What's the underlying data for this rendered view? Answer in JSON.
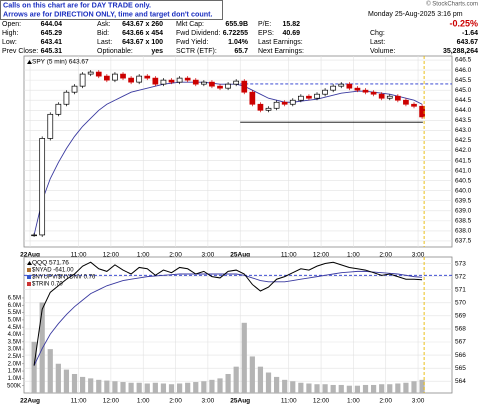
{
  "header": {
    "notes": [
      "Calls on this chart are for DAY TRADE only.",
      "Arrows are for DIRECTION ONLY, time and target don't count."
    ],
    "copyright": "© StockCharts.com",
    "date": "Monday  25-Aug-2025  3:16 pm",
    "change_pct": "-0.25%",
    "rows": [
      [
        [
          "Open:",
          "644.04"
        ],
        [
          "Ask:",
          "643.67 x 260"
        ],
        [
          "Mkt Cap:",
          "655.9B"
        ],
        [
          "P/E:",
          "15.82"
        ]
      ],
      [
        [
          "High:",
          "645.29"
        ],
        [
          "Bid:",
          "643.66 x 454"
        ],
        [
          "Fwd Dividend:",
          "6.72255"
        ],
        [
          "EPS:",
          "40.69"
        ]
      ],
      [
        [
          "Low:",
          "643.41"
        ],
        [
          "Last:",
          "643.67 x 100"
        ],
        [
          "Fwd Yield:",
          "1.04%"
        ],
        [
          "Last Earnings:"
        ]
      ],
      [
        [
          "Prev Close:",
          "645.31"
        ],
        [
          "Optionable:",
          "yes"
        ],
        [
          "SCTR (ETF):",
          "65.7"
        ],
        [
          "Next Earnings:"
        ]
      ]
    ],
    "right_rows": [
      [
        "Chg:",
        "-1.64"
      ],
      [
        "Last:",
        "643.67"
      ],
      [
        "Volume:",
        "35,288,264"
      ]
    ]
  },
  "chart_data": [
    {
      "type": "candlestick",
      "xlim": [
        -0.75,
        52.2
      ],
      "xticks": [
        {
          "value": 0,
          "label": "22Aug"
        },
        {
          "value": 6,
          "label": "11:00"
        },
        {
          "value": 10,
          "label": "12:00"
        },
        {
          "value": 14,
          "label": "1:00"
        },
        {
          "value": 18,
          "label": "2:00"
        },
        {
          "value": 22,
          "label": "3:00"
        },
        {
          "value": 26,
          "label": "25Aug"
        },
        {
          "value": 32,
          "label": "11:00"
        },
        {
          "value": 36,
          "label": "12:00"
        },
        {
          "value": 40,
          "label": "1:00"
        },
        {
          "value": 44,
          "label": "2:00"
        },
        {
          "value": 48,
          "label": "3:00"
        }
      ],
      "ylim": [
        637.2,
        646.7
      ],
      "yticks": [
        637.5,
        {
          "value": 638,
          "label": "638.0"
        },
        638.5,
        {
          "value": 639,
          "label": "639.0"
        },
        639.5,
        {
          "value": 640,
          "label": "640.0"
        },
        640.5,
        {
          "value": 641,
          "label": "641.0"
        },
        641.5,
        {
          "value": 642,
          "label": "642.0"
        },
        642.5,
        {
          "value": 643,
          "label": "643.0"
        },
        643.5,
        {
          "value": 644,
          "label": "644.0"
        },
        644.5,
        {
          "value": 645,
          "label": "645.0"
        },
        645.5,
        {
          "value": 646,
          "label": "646.0"
        },
        646.5
      ],
      "grid": true,
      "series": [
        {
          "name": "SPY (5 min) 643.67",
          "color": "#000000",
          "down_color": "#cc0000",
          "values": [
            637.8,
            642.6,
            643.8,
            644.3,
            644.9,
            645.2,
            645.8,
            645.9,
            645.7,
            645.5,
            645.8,
            645.6,
            645.4,
            645.7,
            645.6,
            645.3,
            645.5,
            645.4,
            645.6,
            645.5,
            645.3,
            645.4,
            645.2,
            645.1,
            645.3,
            645.45,
            644.9,
            644.3,
            644.0,
            644.1,
            644.4,
            644.3,
            644.5,
            644.7,
            644.6,
            644.8,
            645.0,
            645.2,
            645.3,
            645.1,
            645.0,
            644.9,
            644.8,
            644.6,
            644.7,
            644.5,
            644.3,
            644.2,
            643.67
          ]
        }
      ],
      "overlay": {
        "color": "#3a3aa0",
        "values": [
          637.8,
          639.5,
          640.6,
          641.4,
          642.1,
          642.7,
          643.2,
          643.6,
          644.0,
          644.3,
          644.5,
          644.7,
          644.9,
          645.0,
          645.1,
          645.2,
          645.3,
          645.35,
          645.4,
          645.4,
          645.4,
          645.4,
          645.35,
          645.3,
          645.3,
          645.3,
          645.2,
          645.0,
          644.8,
          644.6,
          644.5,
          644.4,
          644.4,
          644.45,
          644.5,
          644.55,
          644.65,
          644.75,
          644.85,
          644.9,
          644.95,
          644.95,
          644.9,
          644.85,
          644.8,
          644.7,
          644.6,
          644.5,
          644.3
        ]
      },
      "hlines": [
        {
          "value": 645.31,
          "x": [
            26,
            52.2
          ],
          "color": "#2233cc",
          "dashed": true
        },
        {
          "value": 643.41,
          "x": [
            26,
            48.6
          ],
          "color": "#000000",
          "dashed": false
        }
      ],
      "cursor": {
        "x": 48.75,
        "color": "#e8b800"
      }
    },
    {
      "type": "line",
      "xlim": [
        -0.75,
        52.2
      ],
      "xticks": [
        {
          "value": 0,
          "label": "22Aug"
        },
        {
          "value": 6,
          "label": "11:00"
        },
        {
          "value": 10,
          "label": "12:00"
        },
        {
          "value": 14,
          "label": "1:00"
        },
        {
          "value": 18,
          "label": "2:00"
        },
        {
          "value": 22,
          "label": "3:00"
        },
        {
          "value": 26,
          "label": "25Aug"
        },
        {
          "value": 32,
          "label": "11:00"
        },
        {
          "value": 36,
          "label": "12:00"
        },
        {
          "value": 40,
          "label": "1:00"
        },
        {
          "value": 44,
          "label": "2:00"
        },
        {
          "value": 48,
          "label": "3:00"
        }
      ],
      "ylim": [
        563.1,
        573.5
      ],
      "yticks": [
        564,
        565,
        566,
        567,
        568,
        569,
        570,
        571,
        572,
        573
      ],
      "y2lim": [
        0,
        9300000
      ],
      "y2ticks": [
        {
          "value": 500000,
          "label": "500K"
        },
        {
          "value": 1000000,
          "label": "1.0M"
        },
        {
          "value": 1500000,
          "label": "1.5M"
        },
        {
          "value": 2000000,
          "label": "2.0M"
        },
        {
          "value": 2500000,
          "label": "2.5M"
        },
        {
          "value": 3000000,
          "label": "3.0M"
        },
        {
          "value": 3500000,
          "label": "3.5M"
        },
        {
          "value": 4000000,
          "label": "4.0M"
        },
        {
          "value": 4500000,
          "label": "4.5M"
        },
        {
          "value": 5000000,
          "label": "5.0M"
        },
        {
          "value": 5500000,
          "label": "5.5M"
        },
        {
          "value": 6000000,
          "label": "6.0M"
        },
        {
          "value": 6500000,
          "label": "6.5M"
        }
      ],
      "grid": true,
      "series": [
        {
          "name": "QQQ 571.76",
          "color": "#000000",
          "values": [
            565.2,
            569.5,
            570.8,
            571.3,
            571.8,
            572.2,
            572.8,
            573.1,
            572.6,
            572.4,
            572.9,
            572.5,
            572.2,
            572.7,
            572.6,
            572.1,
            572.5,
            572.3,
            572.7,
            572.6,
            572.2,
            572.4,
            572.0,
            571.9,
            572.4,
            572.5,
            572.2,
            571.4,
            570.9,
            571.2,
            571.8,
            572.0,
            572.3,
            572.6,
            572.5,
            572.8,
            573.0,
            573.1,
            572.9,
            572.7,
            572.6,
            572.5,
            572.3,
            572.1,
            572.2,
            572.0,
            571.8,
            571.8,
            571.76
          ]
        },
        {
          "name": "Volume",
          "axis": "y2",
          "color": "#b4b4b4",
          "values": [
            3500000,
            6200000,
            3000000,
            2000000,
            1600000,
            1300000,
            1100000,
            1000000,
            900000,
            850000,
            800000,
            750000,
            700000,
            700000,
            650000,
            700000,
            650000,
            600000,
            650000,
            700000,
            750000,
            800000,
            900000,
            1000000,
            1300000,
            1800000,
            4800000,
            2500000,
            1800000,
            1400000,
            1100000,
            900000,
            800000,
            700000,
            650000,
            600000,
            600000,
            550000,
            550000,
            500000,
            500000,
            550000,
            550000,
            600000,
            600000,
            650000,
            700000,
            800000,
            900000
          ]
        }
      ],
      "indicator_labels": [
        "$NYAD -641.00",
        "$NYUPV/$NYDNV 0.76",
        "$TRIN 0.70"
      ],
      "overlay": {
        "color": "#3a3aa0",
        "values": [
          565.2,
          566.5,
          567.6,
          568.4,
          569.1,
          569.7,
          570.2,
          570.7,
          571.0,
          571.3,
          571.5,
          571.7,
          571.8,
          571.9,
          572.0,
          572.05,
          572.1,
          572.15,
          572.2,
          572.2,
          572.2,
          572.2,
          572.2,
          572.2,
          572.2,
          572.2,
          572.1,
          571.9,
          571.7,
          571.6,
          571.6,
          571.6,
          571.7,
          571.8,
          571.9,
          572.0,
          572.1,
          572.2,
          572.3,
          572.35,
          572.4,
          572.4,
          572.35,
          572.3,
          572.25,
          572.2,
          572.1,
          572.0,
          571.95
        ]
      },
      "hlines": [
        {
          "value": 572.1,
          "x": [
            -0.75,
            52.2
          ],
          "color": "#2233cc",
          "dashed": true
        }
      ],
      "cursor": {
        "x": 48.75,
        "color": "#e8b800"
      }
    }
  ]
}
